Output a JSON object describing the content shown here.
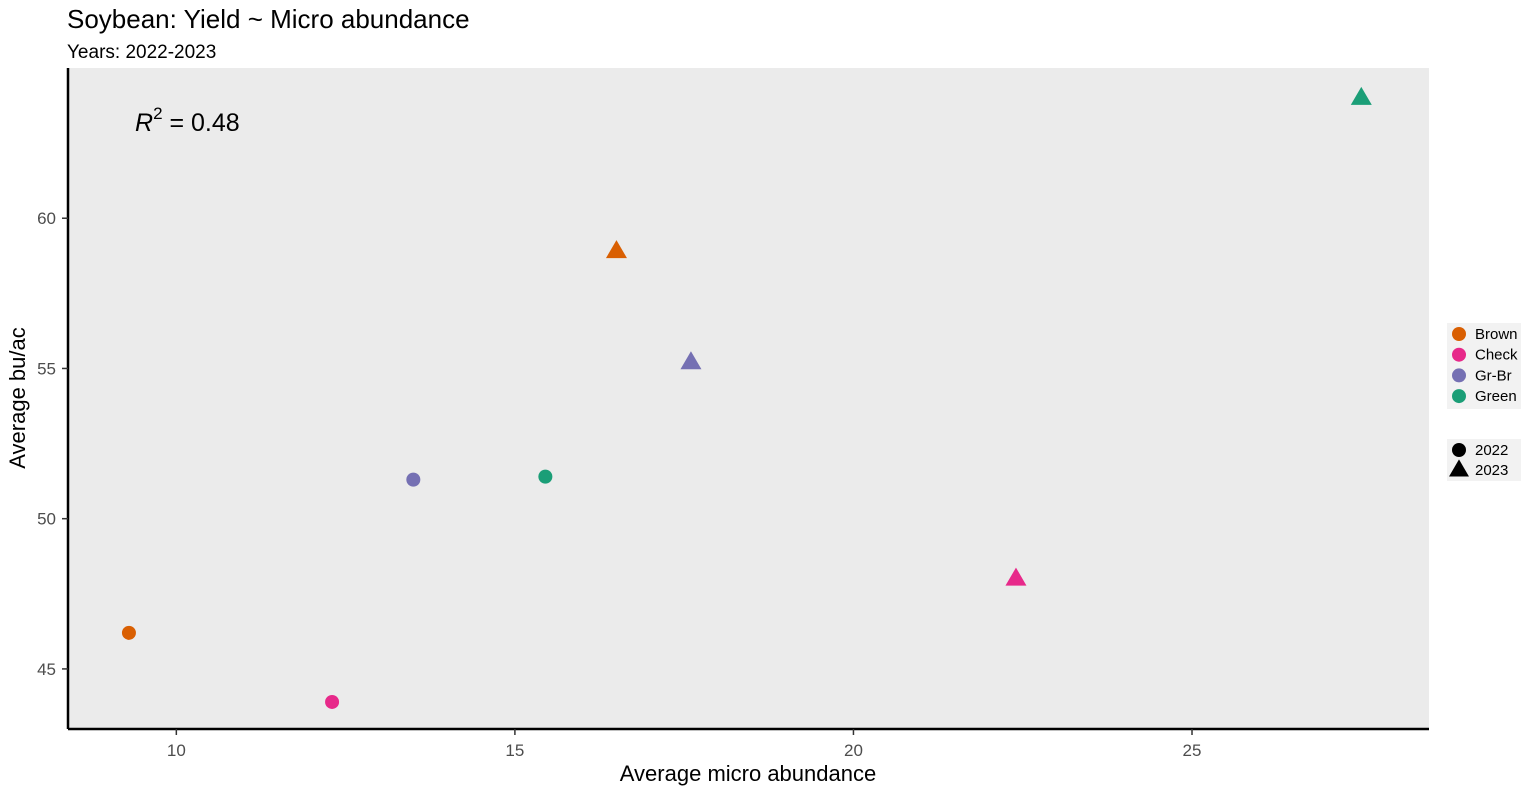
{
  "chart_data": {
    "type": "scatter",
    "title": "Soybean: Yield ~ Micro abundance",
    "subtitle": "Years: 2022-2023",
    "xlabel": "Average micro abundance",
    "ylabel": "Average bu/ac",
    "xlim": [
      8.4,
      28.5
    ],
    "ylim": [
      43.0,
      65.0
    ],
    "xticks": [
      10,
      15,
      20,
      25
    ],
    "yticks": [
      45,
      50,
      55,
      60
    ],
    "grid": false,
    "panel_background": "#ebebeb",
    "annotation": {
      "r_symbol": "R",
      "exponent": "2",
      "rest": " = 0.48"
    },
    "legend_position": "right",
    "color_legend": [
      {
        "name": "Brown",
        "color": "#d95f02"
      },
      {
        "name": "Check",
        "color": "#e7298a"
      },
      {
        "name": "Gr-Br",
        "color": "#7570b3"
      },
      {
        "name": "Green",
        "color": "#1b9e77"
      }
    ],
    "shape_legend": [
      {
        "name": "2022",
        "shape": "circle"
      },
      {
        "name": "2023",
        "shape": "triangle"
      }
    ],
    "points": [
      {
        "group": "Brown",
        "year": "2022",
        "x": 9.3,
        "y": 46.2
      },
      {
        "group": "Check",
        "year": "2022",
        "x": 12.3,
        "y": 43.9
      },
      {
        "group": "Gr-Br",
        "year": "2022",
        "x": 13.5,
        "y": 51.3
      },
      {
        "group": "Green",
        "year": "2022",
        "x": 15.45,
        "y": 51.4
      },
      {
        "group": "Brown",
        "year": "2023",
        "x": 16.5,
        "y": 58.9
      },
      {
        "group": "Gr-Br",
        "year": "2023",
        "x": 17.6,
        "y": 55.2
      },
      {
        "group": "Check",
        "year": "2023",
        "x": 22.4,
        "y": 48.0
      },
      {
        "group": "Green",
        "year": "2023",
        "x": 27.5,
        "y": 64.0
      }
    ]
  }
}
